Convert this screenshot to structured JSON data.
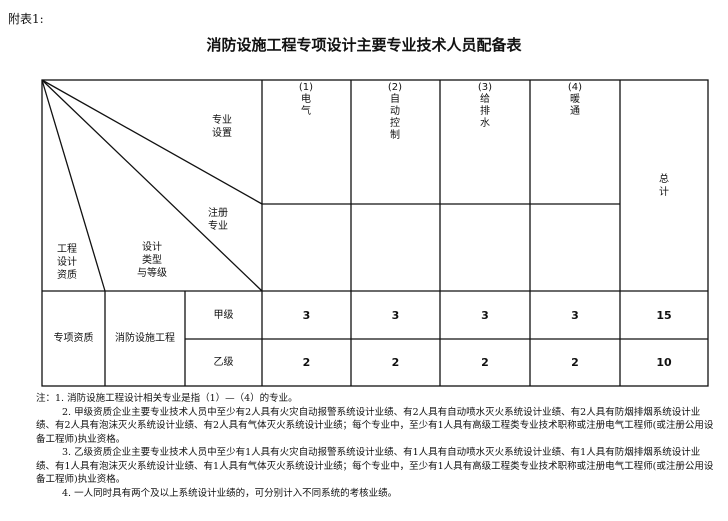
{
  "attachment_label": "附表1:",
  "title": "消防设施工程专项设计主要专业技术人员配备表",
  "header": {
    "corner_labels": {
      "specialty_setting": "专业\n设置",
      "registered_specialty": "注册\n专业",
      "design_qualification": "工程\n设计\n资质",
      "design_type_grade": "设计\n类型\n与等级"
    },
    "specialties": [
      {
        "number": "(1)",
        "name": "电\n气"
      },
      {
        "number": "(2)",
        "name": "自\n动\n控\n制"
      },
      {
        "number": "(3)",
        "name": "给\n排\n水"
      },
      {
        "number": "(4)",
        "name": "暖\n通"
      }
    ],
    "total": "总\n计"
  },
  "body": {
    "qualification": "专项资质",
    "design_type": "消防设施工程",
    "rows": [
      {
        "grade": "甲级",
        "values": [
          "3",
          "3",
          "3",
          "3"
        ],
        "total": "15"
      },
      {
        "grade": "乙级",
        "values": [
          "2",
          "2",
          "2",
          "2"
        ],
        "total": "10"
      }
    ]
  },
  "notes": [
    "注：1. 消防设施工程设计相关专业是指（1）—（4）的专业。",
    "2. 甲级资质企业主要专业技术人员中至少有2人具有火灾自动报警系统设计业绩、有2人具有自动喷水灭火系统设计业绩、有2人具有防烟排烟系统设计业绩、有2人具有泡沫灭火系统设计业绩、有2人具有气体灭火系统设计业绩；每个专业中，至少有1人具有高级工程类专业技术职称或注册电气工程师(或注册公用设备工程师)执业资格。",
    "3. 乙级资质企业主要专业技术人员中至少有1人具有火灾自动报警系统设计业绩、有1人具有自动喷水灭火系统设计业绩、有1人具有防烟排烟系统设计业绩、有1人具有泡沫灭火系统设计业绩、有1人具有气体灭火系统设计业绩；每个专业中，至少有1人具有高级工程类专业技术职称或注册电气工程师(或注册公用设备工程师)执业资格。",
    "4. 一人同时具有两个及以上系统设计业绩的，可分别计入不同系统的考核业绩。"
  ]
}
